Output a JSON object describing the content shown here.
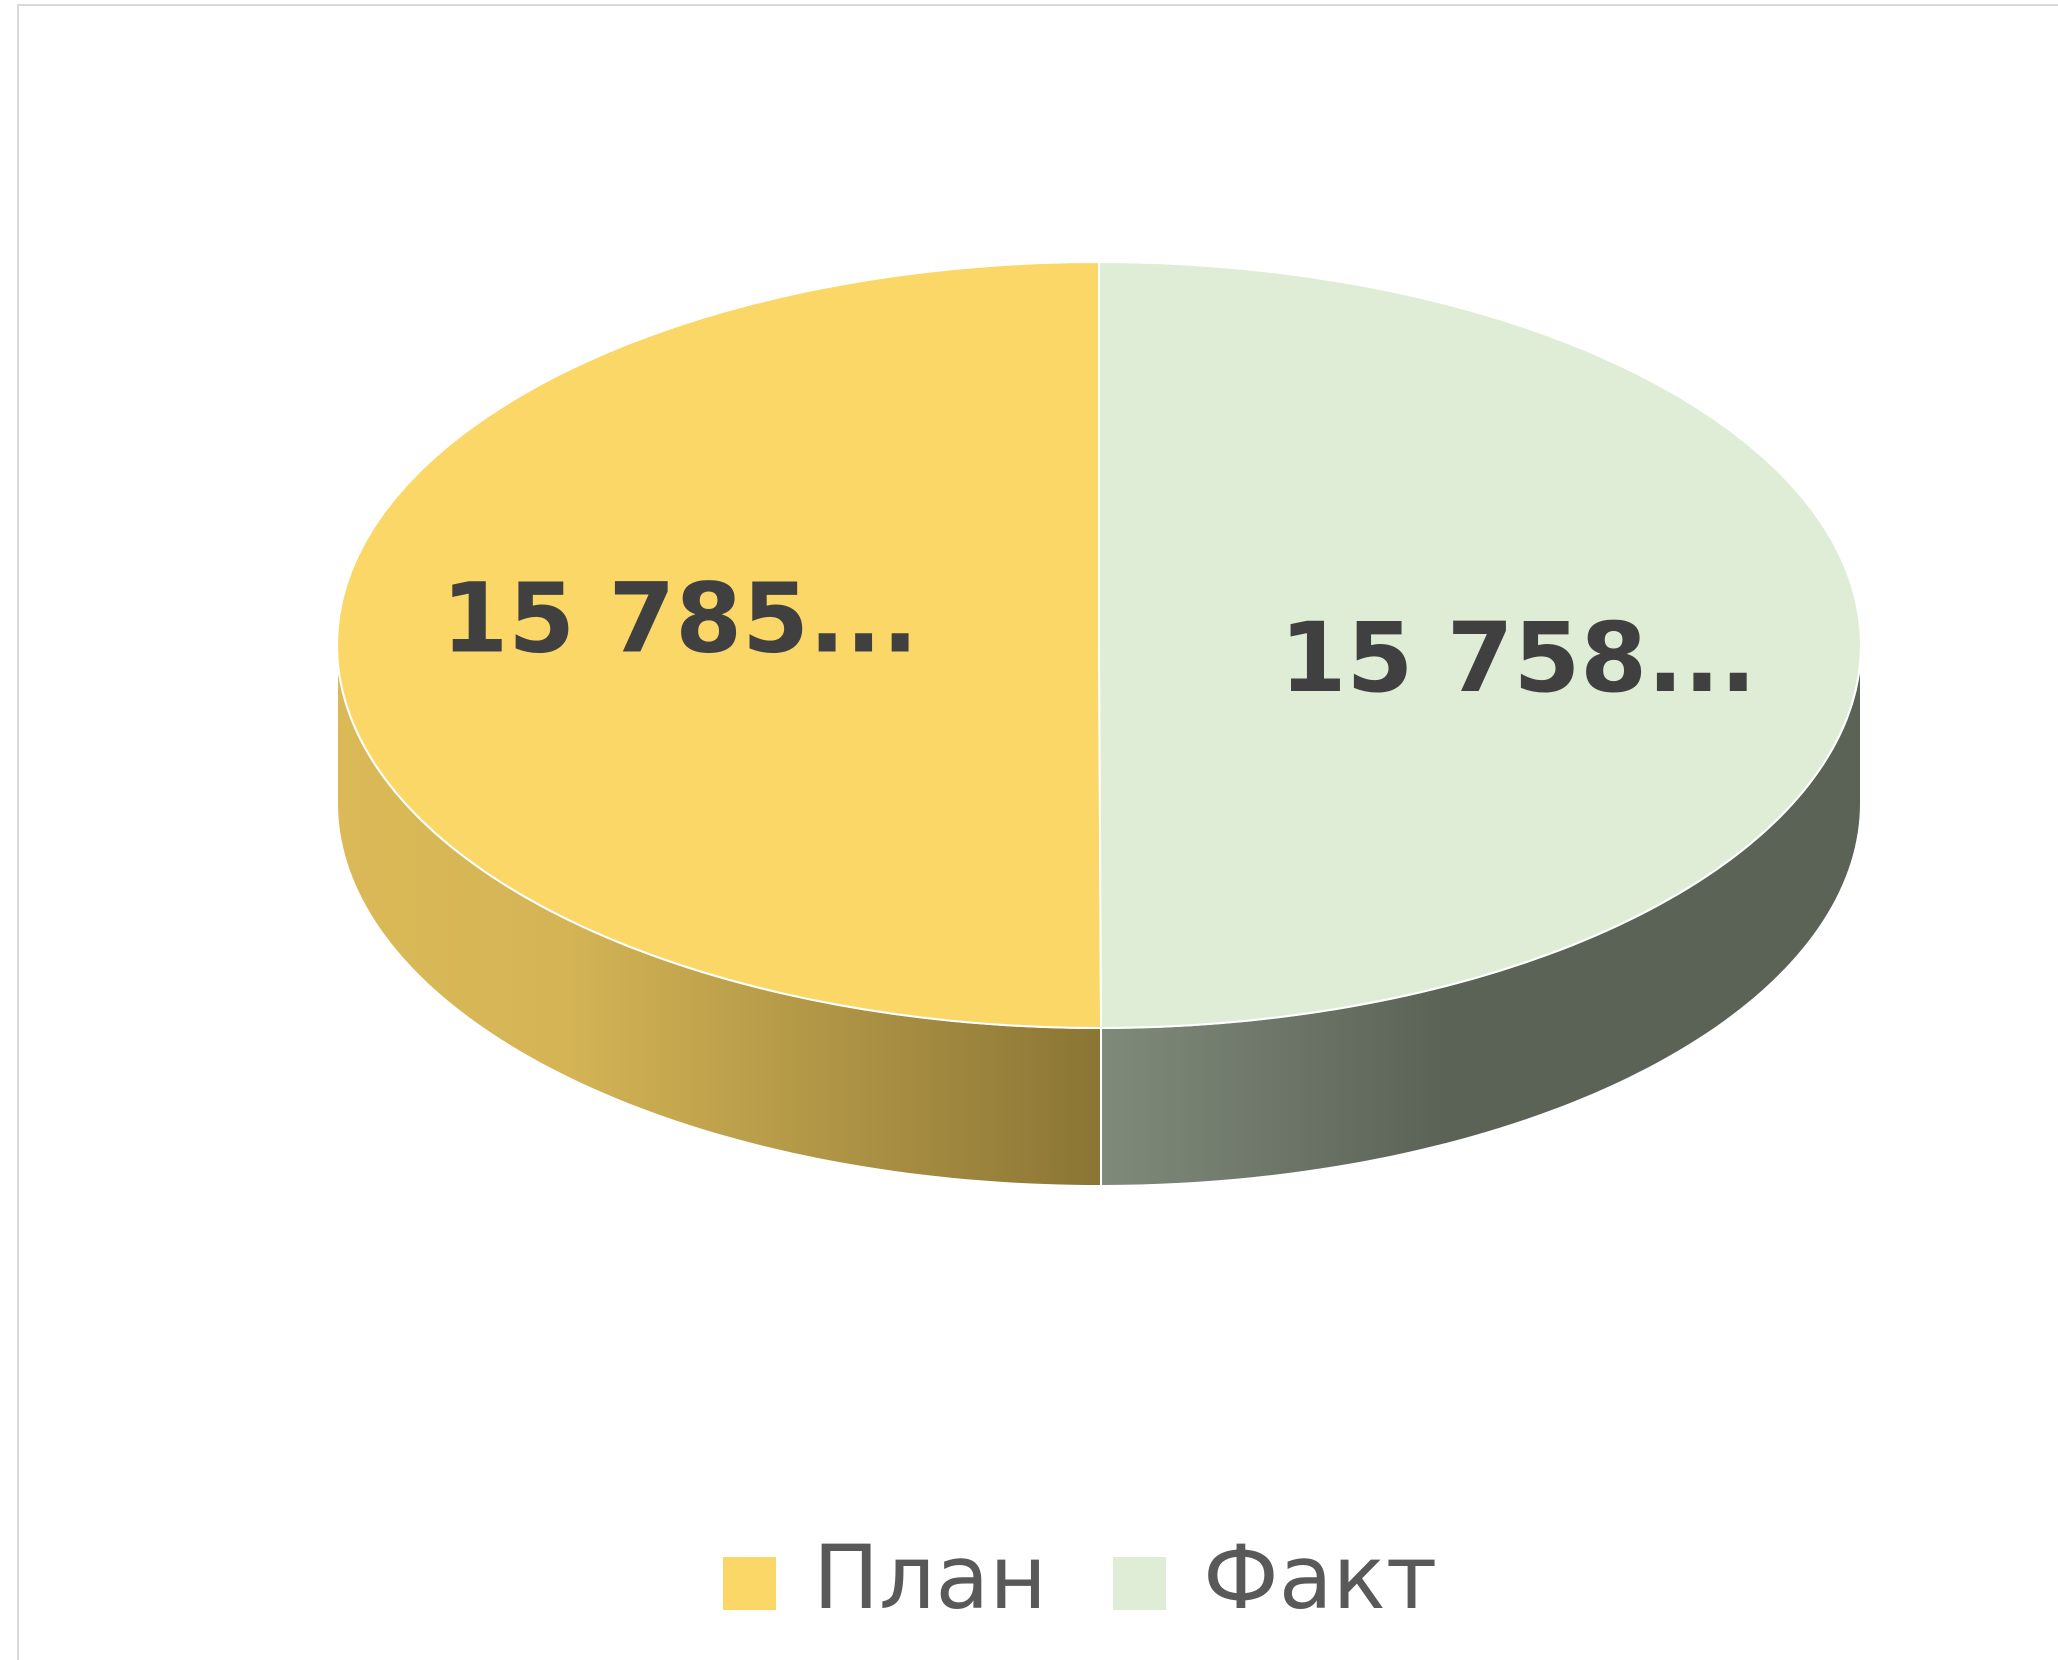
{
  "chart_data": {
    "type": "pie3d",
    "categories": [
      "План",
      "Факт"
    ],
    "values": [
      15785,
      15758
    ],
    "value_labels": [
      "15 785...",
      "15 758..."
    ],
    "colors": [
      "#fad766",
      "#e0edd6"
    ],
    "legend": "bottom"
  }
}
